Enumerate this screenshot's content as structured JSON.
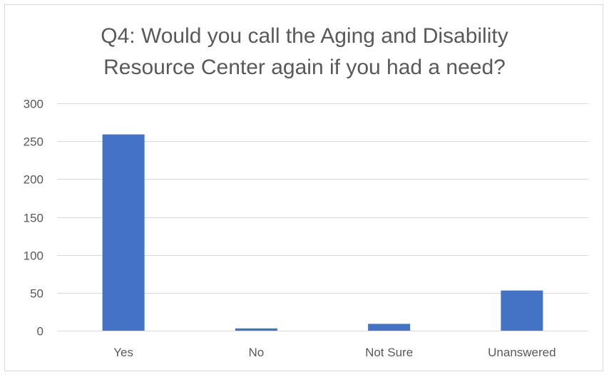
{
  "chart_data": {
    "type": "bar",
    "title": [
      "Q4:  Would you call the Aging and Disability",
      "Resource Center again if you had a need?"
    ],
    "categories": [
      "Yes",
      "No",
      "Not Sure",
      "Unanswered"
    ],
    "values": [
      259,
      3,
      9,
      53
    ],
    "ylim": [
      0,
      300
    ],
    "yticks": [
      0,
      50,
      100,
      150,
      200,
      250,
      300
    ],
    "grid": true,
    "bar_color": "#4472c4",
    "gridline_color": "#d9d9d9",
    "text_color": "#595959"
  }
}
